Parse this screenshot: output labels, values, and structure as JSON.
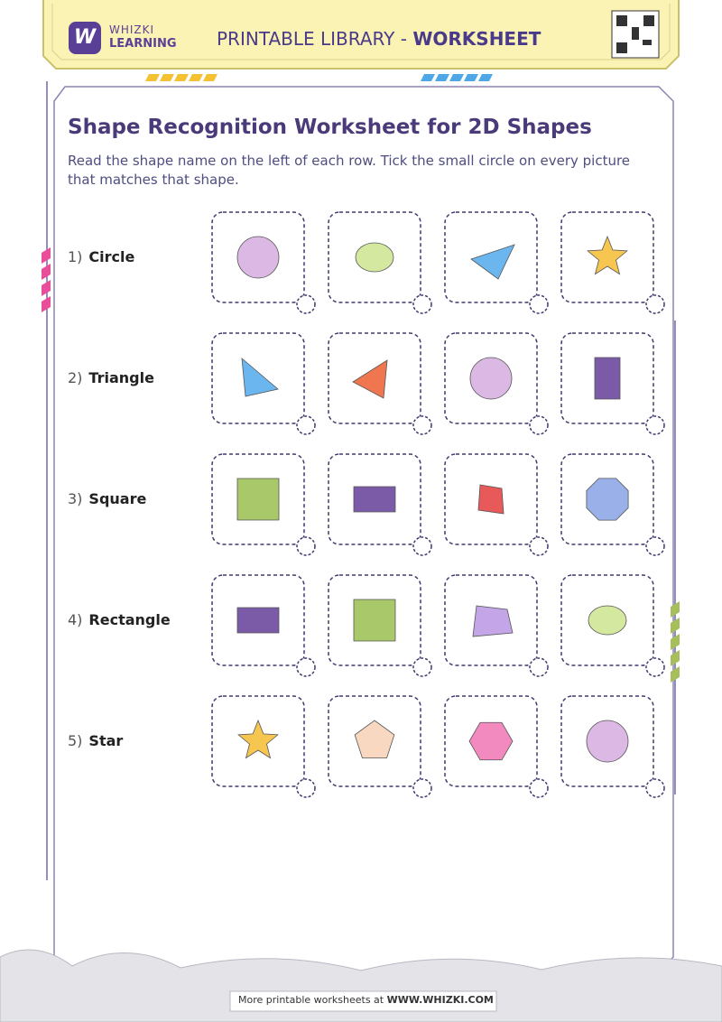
{
  "header": {
    "logo_letter": "W",
    "brand_top": "WHIZKI",
    "brand_bottom": "LEARNING",
    "title_plain": "PRINTABLE LIBRARY - ",
    "title_bold": "WORKSHEET"
  },
  "worksheet": {
    "title": "Shape Recognition Worksheet for 2D Shapes",
    "instructions": "Read the shape name on the left of each row. Tick the small circle on every picture that matches that shape.",
    "rows": [
      {
        "number": "1)",
        "label": "Circle"
      },
      {
        "number": "2)",
        "label": "Triangle"
      },
      {
        "number": "3)",
        "label": "Square"
      },
      {
        "number": "4)",
        "label": "Rectangle"
      },
      {
        "number": "5)",
        "label": "Star"
      }
    ]
  },
  "footer": {
    "text": "More printable worksheets at ",
    "link": "WWW.WHIZKI.COM"
  }
}
